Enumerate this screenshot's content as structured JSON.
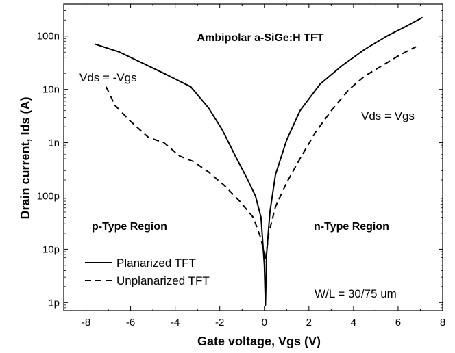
{
  "chart_data": {
    "type": "line",
    "title": "Ambipolar a-SiGe:H TFT",
    "xlabel": "Gate voltage, Vgs (V)",
    "ylabel": "Drain current, Ids (A)",
    "xlim": [
      -9,
      8
    ],
    "ylim_log10": [
      -12.15,
      -6.4
    ],
    "y_scale": "log",
    "x_ticks": [
      -8,
      -6,
      -4,
      -2,
      0,
      2,
      4,
      6,
      8
    ],
    "y_ticks": [
      {
        "label": "1p",
        "log10": -12
      },
      {
        "label": "10p",
        "log10": -11
      },
      {
        "label": "100p",
        "log10": -10
      },
      {
        "label": "1n",
        "log10": -9
      },
      {
        "label": "10n",
        "log10": -8
      },
      {
        "label": "100n",
        "log10": -7
      }
    ],
    "series": [
      {
        "name": "Planarized TFT",
        "style": "solid",
        "points": [
          [
            -7.6,
            -7.15
          ],
          [
            -6.5,
            -7.3
          ],
          [
            -5.5,
            -7.5
          ],
          [
            -4.5,
            -7.7
          ],
          [
            -3.3,
            -7.95
          ],
          [
            -2.5,
            -8.35
          ],
          [
            -1.9,
            -8.75
          ],
          [
            -1.3,
            -9.25
          ],
          [
            -0.8,
            -9.65
          ],
          [
            -0.4,
            -10.0
          ],
          [
            -0.15,
            -10.4
          ],
          [
            0.0,
            -11.3
          ],
          [
            0.05,
            -12.05
          ],
          [
            0.1,
            -11.1
          ],
          [
            0.25,
            -10.3
          ],
          [
            0.5,
            -9.6
          ],
          [
            1.0,
            -8.95
          ],
          [
            1.6,
            -8.4
          ],
          [
            2.5,
            -7.9
          ],
          [
            3.5,
            -7.55
          ],
          [
            4.5,
            -7.25
          ],
          [
            5.5,
            -7.0
          ],
          [
            6.3,
            -6.83
          ],
          [
            7.1,
            -6.65
          ]
        ]
      },
      {
        "name": "Unplanarized TFT",
        "style": "dashed",
        "points": [
          [
            -7.1,
            -7.95
          ],
          [
            -6.7,
            -8.3
          ],
          [
            -6.0,
            -8.6
          ],
          [
            -5.2,
            -8.9
          ],
          [
            -4.5,
            -9.0
          ],
          [
            -3.8,
            -9.25
          ],
          [
            -3.2,
            -9.35
          ],
          [
            -2.5,
            -9.55
          ],
          [
            -1.8,
            -9.8
          ],
          [
            -1.1,
            -10.1
          ],
          [
            -0.5,
            -10.4
          ],
          [
            -0.15,
            -10.8
          ],
          [
            0.05,
            -11.2
          ],
          [
            0.2,
            -10.7
          ],
          [
            0.5,
            -10.2
          ],
          [
            1.0,
            -9.75
          ],
          [
            1.6,
            -9.3
          ],
          [
            2.3,
            -8.8
          ],
          [
            3.0,
            -8.4
          ],
          [
            3.8,
            -8.0
          ],
          [
            4.5,
            -7.75
          ],
          [
            5.3,
            -7.55
          ],
          [
            6.1,
            -7.35
          ],
          [
            6.8,
            -7.2
          ]
        ]
      }
    ],
    "annotations": {
      "title": "Ambipolar a-SiGe:H TFT",
      "left_condition": "Vds = -Vgs",
      "right_condition": "Vds = Vgs",
      "p_region": "p-Type Region",
      "n_region": "n-Type Region",
      "geometry": "W/L = 30/75 um"
    },
    "legend": {
      "placement": "bottom-left",
      "entries": [
        "Planarized TFT",
        "Unplanarized TFT"
      ]
    }
  }
}
